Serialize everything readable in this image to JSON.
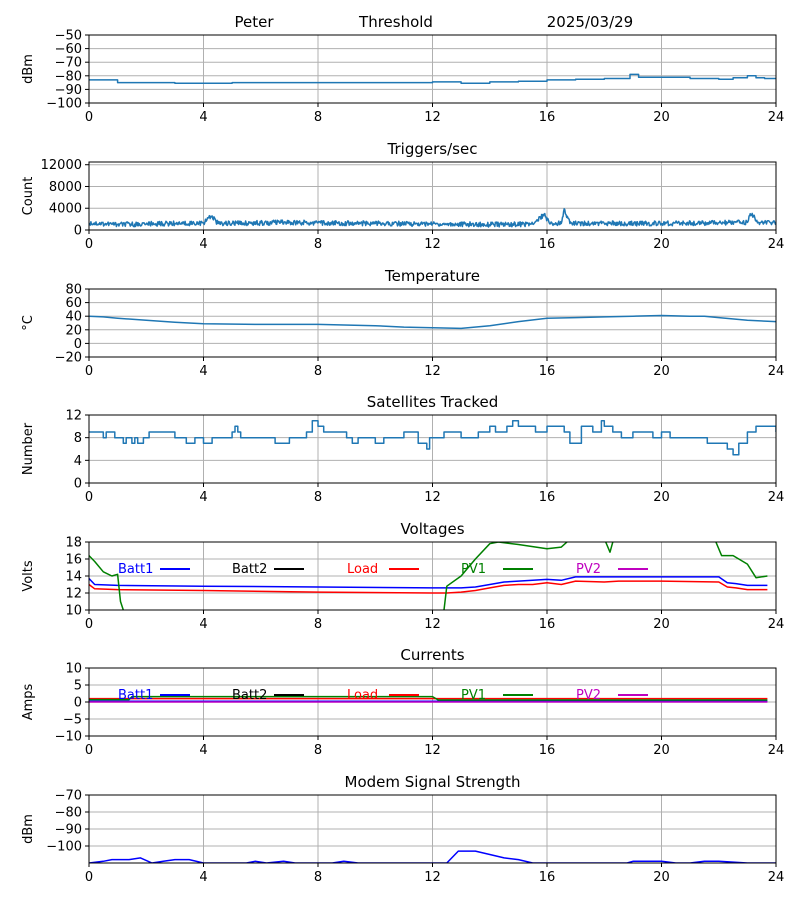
{
  "header": {
    "site": "Peter",
    "label": "Threshold",
    "date": "2025/03/29"
  },
  "colors": {
    "default": "#1f77b4",
    "blue": "#0000ff",
    "red": "#ff0000",
    "green": "#008000",
    "magenta": "#bf00bf",
    "black": "#000000",
    "grid": "#b0b0b0"
  },
  "chart_data": [
    {
      "type": "line",
      "title": "",
      "ylabel": "dBm",
      "xlim": [
        0,
        24
      ],
      "xticks": [
        0,
        4,
        8,
        12,
        16,
        20,
        24
      ],
      "ylim": [
        -100,
        -50
      ],
      "yticks": [
        -100,
        -90,
        -80,
        -70,
        -60,
        -50
      ],
      "series": [
        {
          "color": "#1f77b4",
          "step": true,
          "x": [
            0,
            0.8,
            1,
            3,
            5,
            8,
            10,
            12,
            13,
            14,
            15,
            16,
            17,
            18,
            18.6,
            18.9,
            19.2,
            20,
            21,
            22,
            22.5,
            23,
            23.3,
            23.6,
            24
          ],
          "y": [
            -83,
            -83,
            -85,
            -85.5,
            -85,
            -85,
            -85,
            -84.5,
            -85.5,
            -84.5,
            -84,
            -83,
            -82.5,
            -82,
            -82,
            -79,
            -81,
            -81,
            -82,
            -82.5,
            -81.5,
            -80,
            -81.5,
            -82,
            -82
          ]
        }
      ]
    },
    {
      "type": "line",
      "title": "Triggers/sec",
      "ylabel": "Count",
      "xlim": [
        0,
        24
      ],
      "xticks": [
        0,
        4,
        8,
        12,
        16,
        20,
        24
      ],
      "ylim": [
        0,
        12500
      ],
      "yticks": [
        0,
        4000,
        8000,
        12000
      ],
      "series": [
        {
          "color": "#1f77b4",
          "noisy": true,
          "x": [
            0,
            1,
            2,
            3,
            4,
            4.3,
            4.5,
            6,
            7,
            8,
            10,
            12,
            14,
            15.5,
            15.9,
            16.1,
            16.5,
            16.6,
            16.8,
            18,
            20,
            22,
            23,
            23.1,
            23.4,
            24
          ],
          "y": [
            1300,
            1000,
            1100,
            1200,
            1300,
            2600,
            1200,
            1300,
            1400,
            1300,
            1200,
            1100,
            1000,
            1100,
            2900,
            1100,
            1200,
            3900,
            1200,
            1200,
            1200,
            1300,
            1400,
            3000,
            1400,
            1300
          ]
        }
      ]
    },
    {
      "type": "line",
      "title": "Temperature",
      "ylabel": "°C",
      "xlim": [
        0,
        24
      ],
      "xticks": [
        0,
        4,
        8,
        12,
        16,
        20,
        24
      ],
      "ylim": [
        -20,
        80
      ],
      "yticks": [
        -20,
        0,
        20,
        40,
        60,
        80
      ],
      "series": [
        {
          "color": "#1f77b4",
          "x": [
            0,
            0.5,
            1,
            2,
            3,
            4,
            6,
            8,
            10,
            11,
            12,
            13,
            14,
            15,
            16,
            17,
            18,
            19,
            20,
            21,
            21.5,
            22,
            23,
            24
          ],
          "y": [
            40,
            39,
            37,
            34,
            31,
            29,
            28,
            28,
            26,
            24,
            23,
            22,
            26,
            32,
            37,
            38,
            39,
            40,
            41,
            40,
            40,
            38,
            34,
            32
          ]
        }
      ]
    },
    {
      "type": "line",
      "title": "Satellites Tracked",
      "ylabel": "Number",
      "xlim": [
        0,
        24
      ],
      "xticks": [
        0,
        4,
        8,
        12,
        16,
        20,
        24
      ],
      "ylim": [
        0,
        12
      ],
      "yticks": [
        0,
        4,
        8,
        12
      ],
      "series": [
        {
          "color": "#1f77b4",
          "step": true,
          "x": [
            0,
            0.4,
            0.5,
            0.6,
            0.9,
            1.2,
            1.3,
            1.5,
            1.6,
            1.7,
            1.9,
            2.1,
            2.5,
            3,
            3.4,
            3.7,
            4,
            4.3,
            5,
            5.1,
            5.2,
            5.3,
            5.6,
            6,
            6.5,
            7,
            7.6,
            7.8,
            8,
            8.2,
            9,
            9.2,
            9.4,
            9.7,
            10,
            10.3,
            10.6,
            11,
            11.5,
            11.8,
            11.9,
            12,
            12.4,
            13,
            13.6,
            14,
            14.2,
            14.6,
            14.8,
            15,
            15.6,
            16,
            16.4,
            16.6,
            16.8,
            17.2,
            17.6,
            17.9,
            18,
            18.3,
            18.6,
            19,
            19.5,
            19.7,
            20,
            20.3,
            21,
            21.6,
            22,
            22.3,
            22.5,
            22.7,
            23,
            23.3,
            24
          ],
          "y": [
            9,
            9,
            8,
            9,
            8,
            7,
            8,
            7,
            8,
            7,
            8,
            9,
            9,
            8,
            7,
            8,
            7,
            8,
            9,
            10,
            9,
            8,
            8,
            8,
            7,
            8,
            9,
            11,
            10,
            9,
            8,
            7,
            8,
            8,
            7,
            8,
            8,
            9,
            7,
            6,
            8,
            8,
            9,
            8,
            9,
            10,
            9,
            10,
            11,
            10,
            9,
            10,
            10,
            9,
            7,
            10,
            9,
            11,
            10,
            9,
            8,
            9,
            9,
            8,
            9,
            8,
            8,
            7,
            7,
            6,
            5,
            7,
            9,
            10,
            9
          ]
        }
      ]
    },
    {
      "type": "line",
      "title": "Voltages",
      "ylabel": "Volts",
      "xlim": [
        0,
        24
      ],
      "xticks": [
        0,
        4,
        8,
        12,
        16,
        20,
        24
      ],
      "ylim": [
        10,
        18
      ],
      "yticks": [
        10,
        12,
        14,
        16,
        18
      ],
      "series": [
        {
          "name": "Batt1",
          "color": "#0000ff",
          "x": [
            0,
            0.2,
            1,
            4,
            8,
            12,
            13,
            13.5,
            14,
            14.5,
            15,
            15.5,
            16,
            16.5,
            17,
            18,
            18.5,
            20,
            22,
            22.3,
            22.6,
            23,
            23.7
          ],
          "y": [
            13.7,
            13,
            12.9,
            12.8,
            12.7,
            12.6,
            12.6,
            12.7,
            13,
            13.3,
            13.4,
            13.5,
            13.6,
            13.5,
            13.9,
            13.9,
            13.9,
            13.9,
            13.9,
            13.2,
            13.1,
            12.9,
            12.9
          ]
        },
        {
          "name": "Batt2",
          "color": "#000000",
          "x": [],
          "y": []
        },
        {
          "name": "Load",
          "color": "#ff0000",
          "x": [
            0,
            0.2,
            1,
            4,
            8,
            12,
            12.5,
            13,
            13.5,
            14,
            14.5,
            15,
            15.5,
            16,
            16.5,
            17,
            18,
            18.5,
            20,
            22,
            22.3,
            22.6,
            23,
            23.7
          ],
          "y": [
            13,
            12.5,
            12.4,
            12.3,
            12.1,
            12,
            12,
            12.1,
            12.3,
            12.6,
            12.9,
            13,
            13,
            13.2,
            13,
            13.4,
            13.3,
            13.4,
            13.4,
            13.3,
            12.7,
            12.6,
            12.4,
            12.4
          ]
        },
        {
          "name": "PV1",
          "color": "#008000",
          "segments": [
            {
              "x": [
                0,
                0.2,
                0.5,
                0.8,
                1,
                1.1,
                1.2
              ],
              "y": [
                16.4,
                15.7,
                14.5,
                14,
                14.2,
                11,
                10
              ]
            },
            {
              "x": [
                12.4,
                12.5,
                13,
                13.5,
                14,
                14.3,
                15,
                16,
                16.5,
                16.7
              ],
              "y": [
                10,
                12.8,
                14,
                16,
                17.8,
                18,
                17.7,
                17.2,
                17.4,
                18
              ]
            },
            {
              "x": [
                18.05,
                18.2,
                18.3
              ],
              "y": [
                18,
                16.8,
                18
              ]
            },
            {
              "x": [
                21.9,
                22.1,
                22.5,
                23,
                23.3,
                23.7
              ],
              "y": [
                18,
                16.4,
                16.4,
                15.4,
                13.8,
                14
              ]
            }
          ]
        },
        {
          "name": "PV2",
          "color": "#bf00bf",
          "x": [],
          "y": []
        }
      ]
    },
    {
      "type": "line",
      "title": "Currents",
      "ylabel": "Amps",
      "xlim": [
        0,
        24
      ],
      "xticks": [
        0,
        4,
        8,
        12,
        16,
        20,
        24
      ],
      "ylim": [
        -10,
        10
      ],
      "yticks": [
        -10,
        -5,
        0,
        5,
        10
      ],
      "series": [
        {
          "name": "Batt1",
          "color": "#0000ff",
          "x": [
            0,
            23.7
          ],
          "y": [
            0.2,
            0.2
          ]
        },
        {
          "name": "Batt2",
          "color": "#000000",
          "x": [],
          "y": []
        },
        {
          "name": "Load",
          "color": "#ff0000",
          "x": [
            0,
            23.7
          ],
          "y": [
            1,
            1
          ]
        },
        {
          "name": "PV1",
          "color": "#008000",
          "x": [
            0,
            1.4,
            1.5,
            12,
            12.2,
            23.7
          ],
          "y": [
            0.7,
            0.7,
            1.6,
            1.6,
            0.6,
            0.6
          ]
        },
        {
          "name": "PV2",
          "color": "#bf00bf",
          "x": [
            0,
            23.7
          ],
          "y": [
            0,
            0
          ]
        }
      ]
    },
    {
      "type": "line",
      "title": "Modem Signal Strength",
      "ylabel": "dBm",
      "xlim": [
        0,
        24
      ],
      "xticks": [
        0,
        4,
        8,
        12,
        16,
        20,
        24
      ],
      "ylim": [
        -110,
        -70
      ],
      "yticks": [
        -100,
        -90,
        -80,
        -70
      ],
      "series": [
        {
          "color": "#0000ff",
          "x": [
            0,
            0.5,
            0.8,
            1.4,
            1.8,
            2.2,
            2.6,
            3,
            3.5,
            4,
            4.5,
            5,
            5.5,
            5.8,
            6.2,
            6.8,
            7.2,
            8,
            8.5,
            8.9,
            9.4,
            10,
            10.5,
            11,
            11.5,
            12,
            12.5,
            12.9,
            13.5,
            14,
            14.5,
            15,
            15.5,
            16,
            17,
            18,
            18.8,
            19,
            20,
            20.5,
            21,
            21.5,
            22,
            23,
            24
          ],
          "y": [
            -110,
            -109,
            -108,
            -108,
            -107,
            -110,
            -109,
            -108,
            -108,
            -110,
            -110,
            -110,
            -110,
            -109,
            -110,
            -109,
            -110,
            -110,
            -110,
            -109,
            -110,
            -110,
            -110,
            -110,
            -110,
            -110,
            -110,
            -103,
            -103,
            -105,
            -107,
            -108,
            -110,
            -110,
            -110,
            -110,
            -110,
            -109,
            -109,
            -110,
            -110,
            -109,
            -109,
            -110,
            -110
          ]
        }
      ]
    }
  ]
}
